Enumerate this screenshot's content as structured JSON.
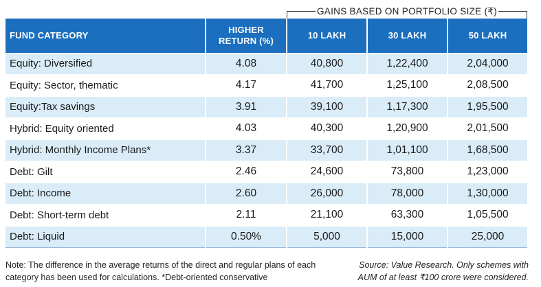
{
  "gains_caption": "GAINS BASED ON PORTFOLIO SIZE (₹)",
  "headers": {
    "category": "FUND CATEGORY",
    "higher_return_line1": "HIGHER",
    "higher_return_line2": "RETURN (%)",
    "col_10": "10 LAKH",
    "col_30": "30 LAKH",
    "col_50": "50 LAKH"
  },
  "rows": [
    {
      "category": "Equity: Diversified",
      "ret": "4.08",
      "g10": "40,800",
      "g30": "1,22,400",
      "g50": "2,04,000"
    },
    {
      "category": "Equity: Sector, thematic",
      "ret": "4.17",
      "g10": "41,700",
      "g30": "1,25,100",
      "g50": "2,08,500"
    },
    {
      "category": "Equity:Tax savings",
      "ret": "3.91",
      "g10": "39,100",
      "g30": "1,17,300",
      "g50": "1,95,500"
    },
    {
      "category": "Hybrid: Equity oriented",
      "ret": "4.03",
      "g10": "40,300",
      "g30": "1,20,900",
      "g50": "2,01,500"
    },
    {
      "category": "Hybrid: Monthly Income Plans*",
      "ret": "3.37",
      "g10": "33,700",
      "g30": "1,01,100",
      "g50": "1,68,500"
    },
    {
      "category": "Debt: Gilt",
      "ret": "2.46",
      "g10": "24,600",
      "g30": "73,800",
      "g50": "1,23,000"
    },
    {
      "category": "Debt: Income",
      "ret": "2.60",
      "g10": "26,000",
      "g30": "78,000",
      "g50": "1,30,000"
    },
    {
      "category": "Debt: Short-term debt",
      "ret": "2.11",
      "g10": "21,100",
      "g30": "63,300",
      "g50": "1,05,500"
    },
    {
      "category": "Debt: Liquid",
      "ret": "0.50%",
      "g10": "5,000",
      "g30": "15,000",
      "g50": "25,000"
    }
  ],
  "footnote": "Note: The difference in the average returns of the direct and regular plans of each category has been used for calculations. *Debt-oriented conservative",
  "source": "Source: Value Research. Only schemes with AUM of at least ₹100 crore were considered."
}
